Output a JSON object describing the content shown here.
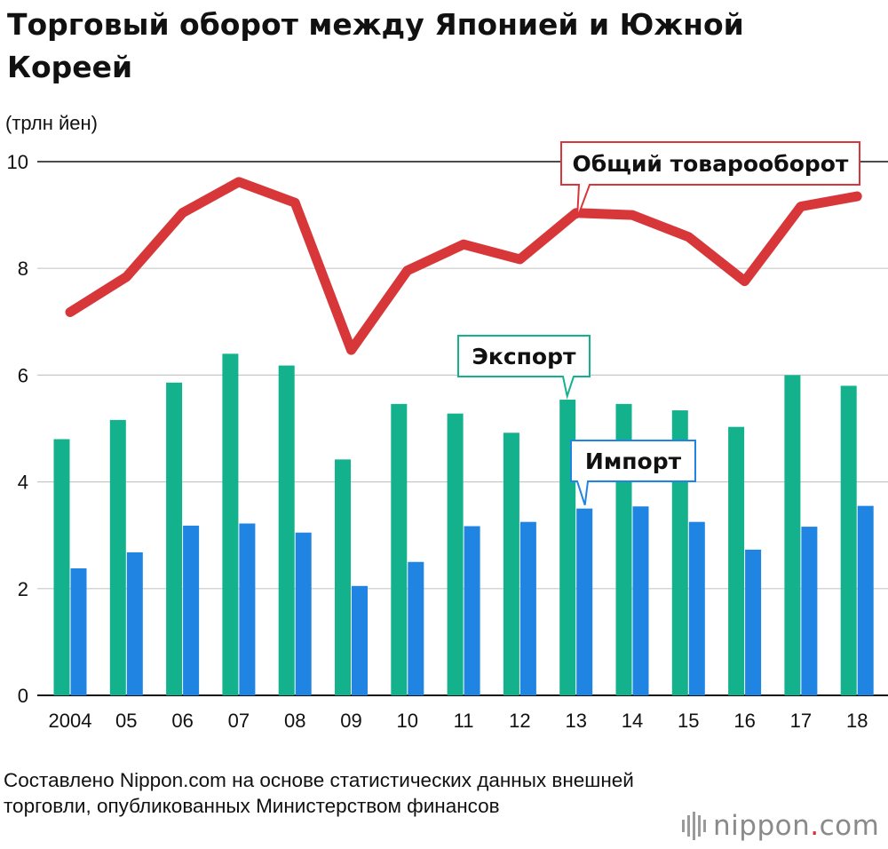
{
  "header": {
    "title": "Торговый оборот между Японией и Южной Кореей",
    "unit_label": "(трлн йен)"
  },
  "footer": {
    "source": "Составлено Nippon.com на основе статистических данных внешней торговли, опубликованных Министерством финансов",
    "logo": {
      "name": "nippon",
      "dot": ".",
      "suffix": "com"
    }
  },
  "colors": {
    "export": "#13b18c",
    "import": "#1f84e2",
    "total": "#d8373a",
    "gridline": "#c8c8c8",
    "axis": "#111111"
  },
  "chart_data": {
    "type": "bar",
    "title": "Торговый оборот между Японией и Южной Кореей",
    "ylabel": "(трлн йен)",
    "xlabel": "",
    "ylim": [
      0,
      10
    ],
    "yticks": [
      0,
      2,
      4,
      6,
      8,
      10
    ],
    "grid": true,
    "categories": [
      "2004",
      "05",
      "06",
      "07",
      "08",
      "09",
      "10",
      "11",
      "12",
      "13",
      "14",
      "15",
      "16",
      "17",
      "18"
    ],
    "series": [
      {
        "name": "Экспорт",
        "kind": "bar",
        "values": [
          4.8,
          5.16,
          5.86,
          6.4,
          6.18,
          4.42,
          5.46,
          5.28,
          4.92,
          5.54,
          5.46,
          5.34,
          5.03,
          6.0,
          5.8
        ]
      },
      {
        "name": "Импорт",
        "kind": "bar",
        "values": [
          2.38,
          2.68,
          3.18,
          3.22,
          3.05,
          2.05,
          2.5,
          3.17,
          3.25,
          3.5,
          3.54,
          3.25,
          2.73,
          3.16,
          3.55
        ]
      },
      {
        "name": "Общий товарооборот",
        "kind": "line",
        "values": [
          7.18,
          7.84,
          9.04,
          9.62,
          9.23,
          6.47,
          7.96,
          8.45,
          8.17,
          9.04,
          9.0,
          8.59,
          7.76,
          9.16,
          9.35
        ]
      }
    ],
    "annotations": [
      {
        "text": "Общий товарооборот",
        "series": "Общий товарооборот",
        "category": "13"
      },
      {
        "text": "Экспорт",
        "series": "Экспорт",
        "category": "13"
      },
      {
        "text": "Импорт",
        "series": "Импорт",
        "category": "13"
      }
    ]
  }
}
